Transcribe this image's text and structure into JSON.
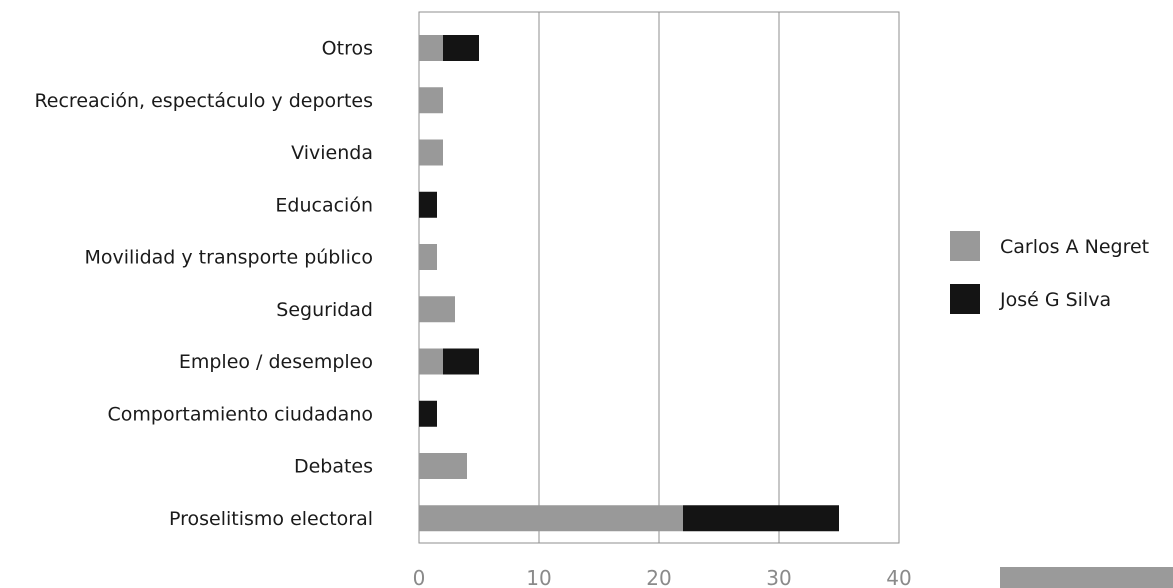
{
  "chart_data": {
    "type": "bar",
    "orientation": "horizontal",
    "stacked": true,
    "categories": [
      "Otros",
      "Recreación, espectáculo y deportes",
      "Vivienda",
      "Educación",
      "Movilidad y transporte público",
      "Seguridad",
      "Empleo / desempleo",
      "Comportamiento ciudadano",
      "Debates",
      "Proselitismo electoral"
    ],
    "series": [
      {
        "name": "Carlos A Negret",
        "color": "#999999",
        "values": [
          2,
          2,
          2,
          0,
          1.5,
          3,
          2,
          0,
          4,
          22
        ]
      },
      {
        "name": "José G Silva",
        "color": "#141414",
        "values": [
          3,
          0,
          0,
          1.5,
          0,
          0,
          3,
          1.5,
          0,
          13
        ]
      }
    ],
    "xlim": [
      0,
      40
    ],
    "xticks": [
      "0",
      "10",
      "20",
      "30",
      "40"
    ],
    "grid": true,
    "legend_position": "right"
  }
}
